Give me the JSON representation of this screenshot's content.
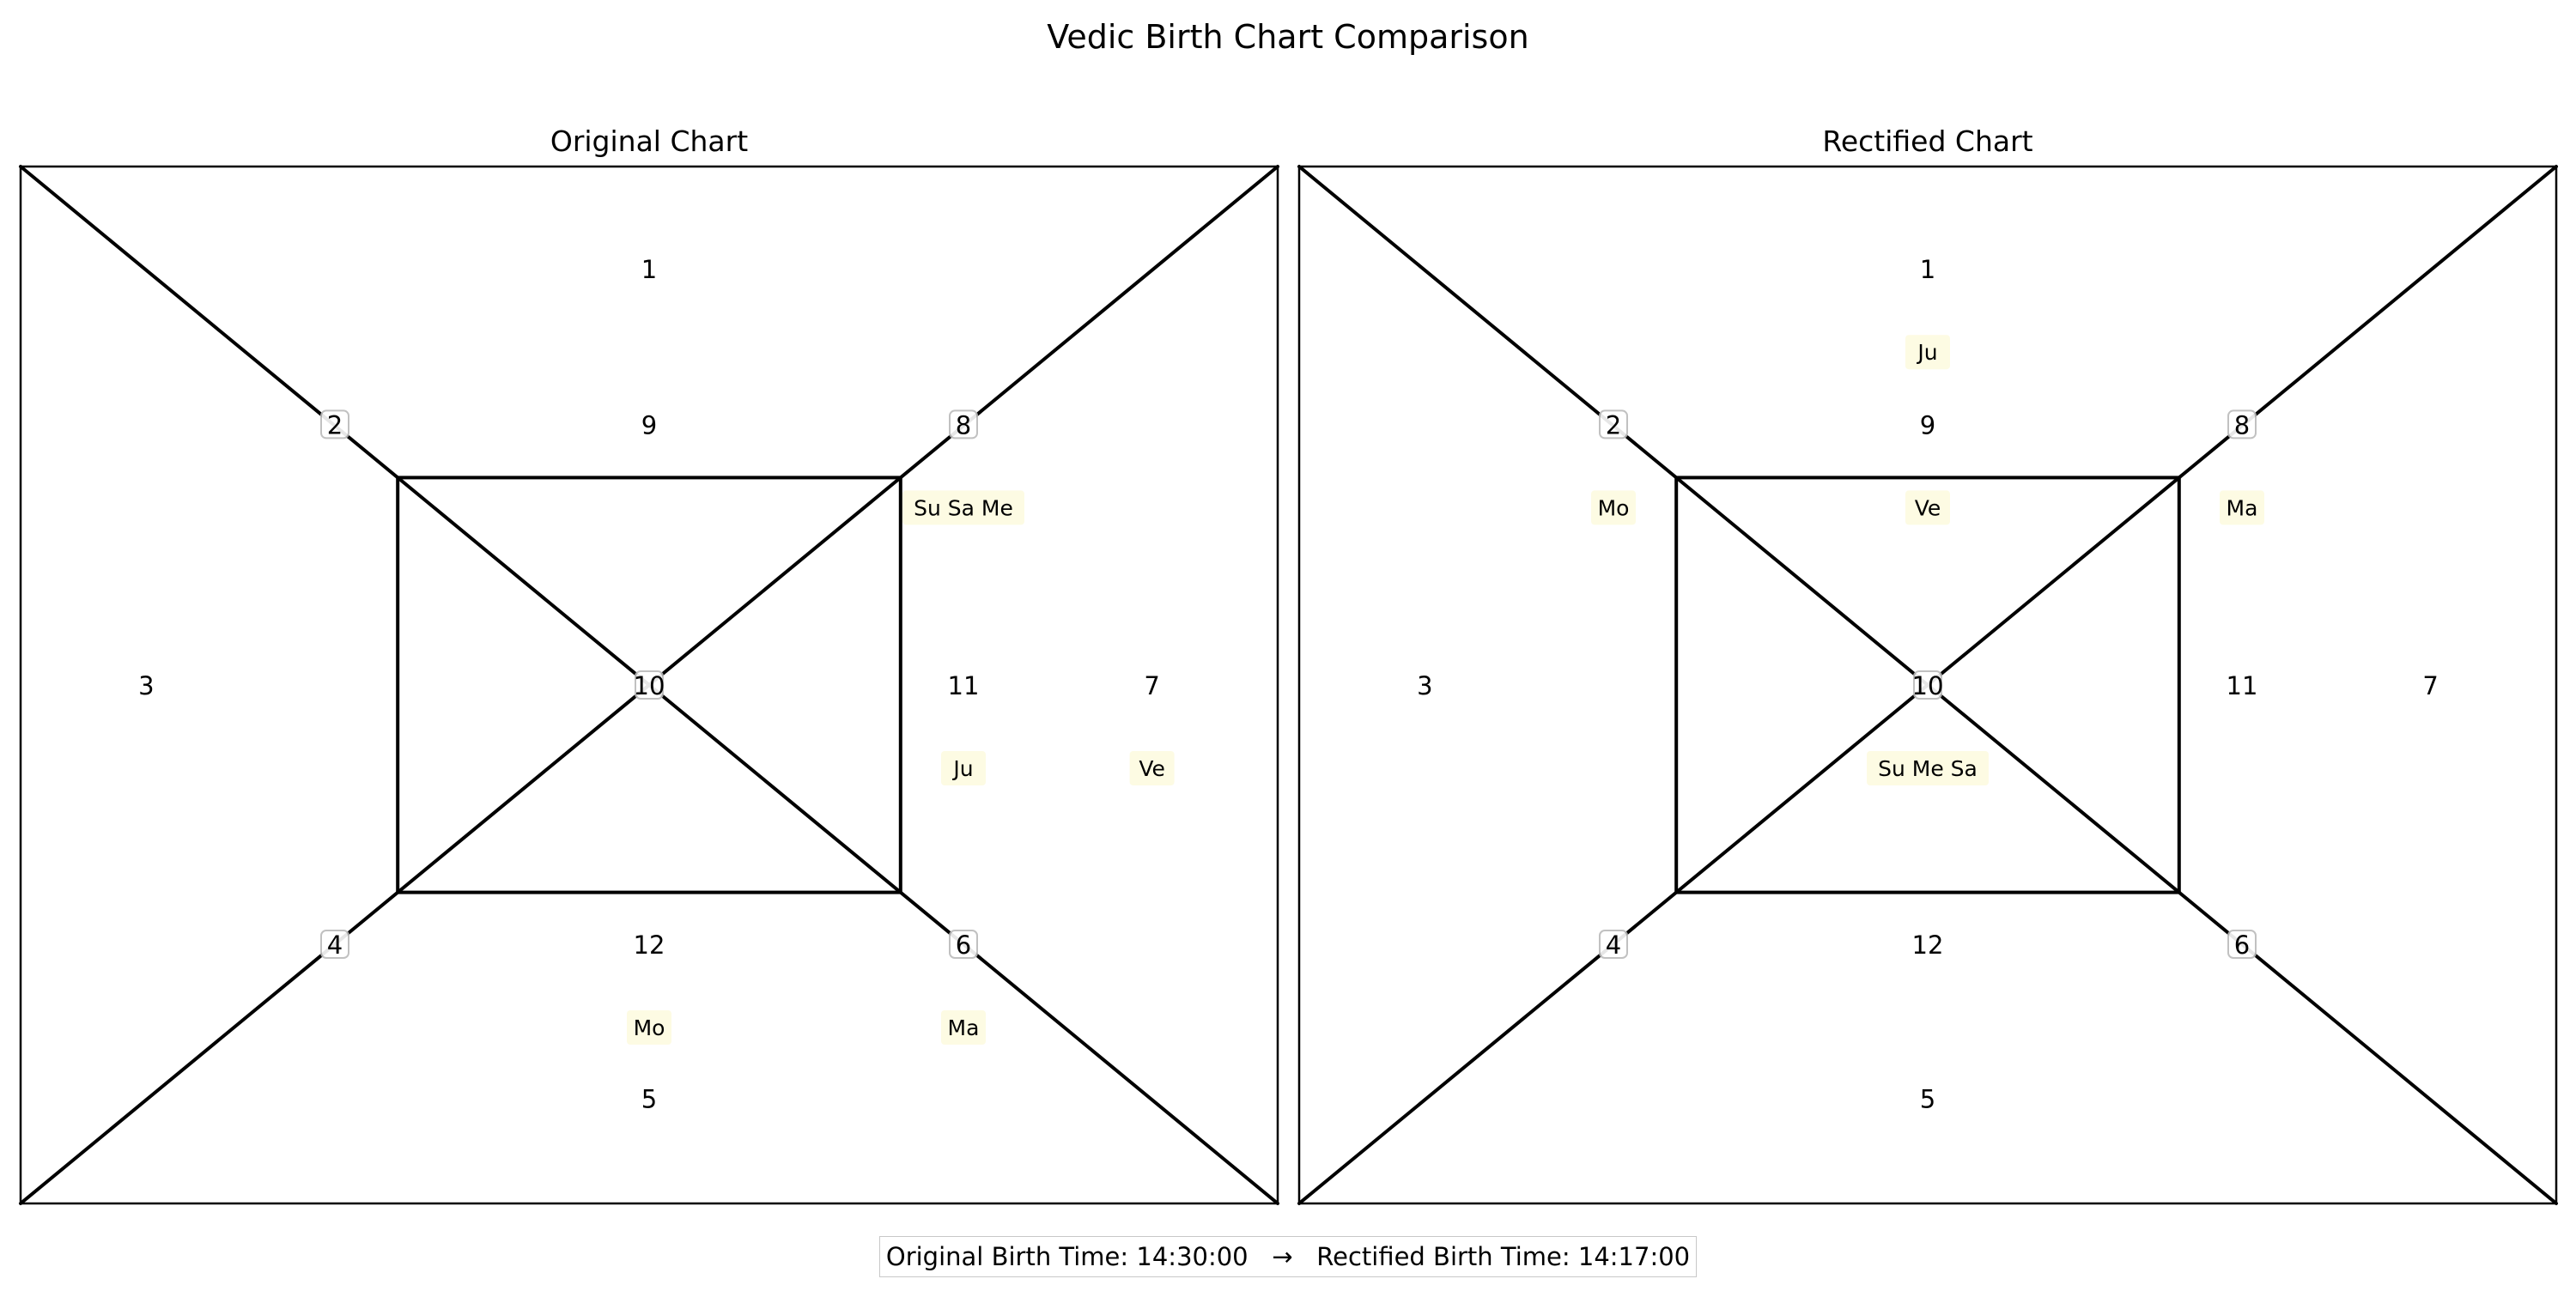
{
  "title": "Vedic Birth Chart Comparison",
  "footer": {
    "original_label": "Original Birth Time:",
    "original_time": "14:30:00",
    "arrow": "→",
    "rectified_label": "Rectified Birth Time:",
    "rectified_time": "14:17:00"
  },
  "colors": {
    "line": "#000000",
    "planet_bg": "#fdfbe3",
    "number_halo": "#bbbbbb"
  },
  "chart_data": [
    {
      "type": "diagram",
      "title": "Original Chart",
      "house_numbers": [
        "1",
        "2",
        "3",
        "4",
        "5",
        "6",
        "7",
        "8",
        "9",
        "10",
        "11",
        "12"
      ],
      "placements": [
        {
          "house": "8",
          "planets": "Su Sa Me"
        },
        {
          "house": "11",
          "planets": "Ju"
        },
        {
          "house": "7",
          "planets": "Ve"
        },
        {
          "house": "12",
          "planets": "Mo"
        },
        {
          "house": "6",
          "planets": "Ma"
        }
      ]
    },
    {
      "type": "diagram",
      "title": "Rectified Chart",
      "house_numbers": [
        "1",
        "2",
        "3",
        "4",
        "5",
        "6",
        "7",
        "8",
        "9",
        "10",
        "11",
        "12"
      ],
      "placements": [
        {
          "house": "1",
          "planets": "Ju"
        },
        {
          "house": "2",
          "planets": "Mo"
        },
        {
          "house": "9",
          "planets": "Ve"
        },
        {
          "house": "8",
          "planets": "Ma"
        },
        {
          "house": "10",
          "planets": "Su Me Sa"
        }
      ]
    }
  ]
}
